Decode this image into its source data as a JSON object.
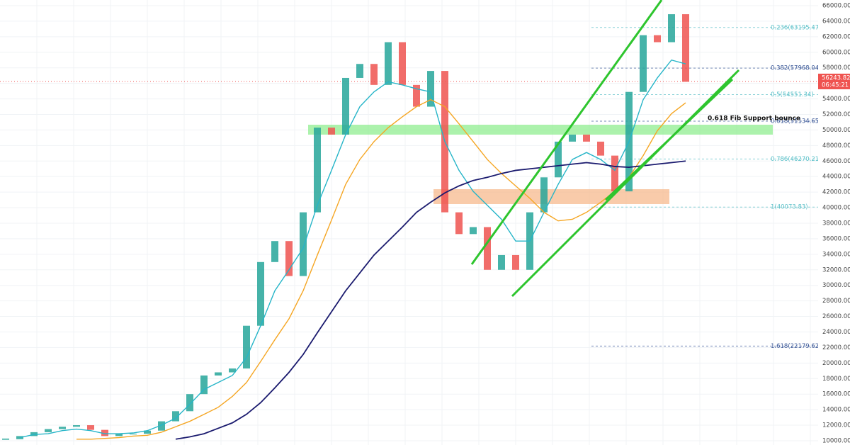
{
  "chart_data": {
    "type": "candlestick",
    "close": [
      10200,
      10600,
      11100,
      11500,
      11800,
      12000,
      11400,
      10600,
      10900,
      10900,
      11300,
      12500,
      13800,
      16000,
      18400,
      18800,
      19300,
      24800,
      33000,
      35700,
      31200,
      39400,
      50300,
      49400,
      56700,
      58500,
      55800,
      61300,
      55800,
      53000,
      57600,
      39400,
      36600,
      37500,
      32000,
      33900,
      32000,
      39400,
      43900,
      48500,
      49400,
      48500,
      46700,
      42100,
      54900,
      62200,
      61300,
      64900,
      56200
    ],
    "up_color": "#26a69a",
    "down_color": "#ef5350",
    "moving_averages": [
      {
        "color": "#26b5c8",
        "values": [
          null,
          10400,
          10800,
          10900,
          11300,
          11500,
          11300,
          10900,
          10900,
          11000,
          11300,
          12000,
          12900,
          14700,
          16600,
          17500,
          18400,
          20700,
          24800,
          29300,
          32000,
          34800,
          40300,
          44800,
          49400,
          53000,
          54900,
          56200,
          55800,
          55300,
          54900,
          48500,
          44800,
          42100,
          40300,
          38500,
          35700,
          35700,
          39400,
          43000,
          46200,
          47100,
          46200,
          44800,
          48500,
          53900,
          56700,
          59000,
          58500
        ]
      },
      {
        "color": "#f5a623",
        "values": [
          null,
          null,
          null,
          null,
          null,
          10200,
          10200,
          10300,
          10400,
          10600,
          10700,
          11100,
          11800,
          12500,
          13400,
          14300,
          15700,
          17500,
          20200,
          23000,
          25700,
          29300,
          33900,
          38400,
          43000,
          46200,
          48500,
          50300,
          51700,
          53000,
          53900,
          53000,
          50800,
          48500,
          46200,
          44400,
          42800,
          41200,
          39400,
          38300,
          38500,
          39400,
          40700,
          42100,
          43900,
          46700,
          49900,
          52100,
          53500
        ]
      },
      {
        "color": "#1a1a6e",
        "values": [
          null,
          null,
          null,
          null,
          null,
          null,
          null,
          null,
          null,
          null,
          null,
          null,
          10200,
          10500,
          10900,
          11600,
          12300,
          13400,
          14900,
          16800,
          18800,
          21100,
          23900,
          26600,
          29300,
          31600,
          33900,
          35700,
          37500,
          39400,
          40700,
          41900,
          42800,
          43500,
          43900,
          44400,
          44800,
          45000,
          45200,
          45400,
          45600,
          45800,
          45600,
          45300,
          45200,
          45400,
          45600,
          45800,
          46000
        ]
      }
    ],
    "ylim": [
      9450,
      66730
    ],
    "yticks": [
      {
        "value": 10000,
        "label": "10000.00"
      },
      {
        "value": 12000,
        "label": "12000.00"
      },
      {
        "value": 14000,
        "label": "14000.00"
      },
      {
        "value": 16000,
        "label": "16000.00"
      },
      {
        "value": 18000,
        "label": "18000.00"
      },
      {
        "value": 20000,
        "label": "20000.00"
      },
      {
        "value": 22000,
        "label": "22000.00"
      },
      {
        "value": 24000,
        "label": "24000.00"
      },
      {
        "value": 26000,
        "label": "26000.00"
      },
      {
        "value": 28000,
        "label": "28000.00"
      },
      {
        "value": 30000,
        "label": "30000.00"
      },
      {
        "value": 32000,
        "label": "32000.00"
      },
      {
        "value": 34000,
        "label": "34000.00"
      },
      {
        "value": 36000,
        "label": "36000.00"
      },
      {
        "value": 38000,
        "label": "38000.00"
      },
      {
        "value": 40000,
        "label": "40000.00"
      },
      {
        "value": 42000,
        "label": "42000.00"
      },
      {
        "value": 44000,
        "label": "44000.00"
      },
      {
        "value": 46000,
        "label": "46000.00"
      },
      {
        "value": 48000,
        "label": "48000.00"
      },
      {
        "value": 50000,
        "label": "50000.00"
      },
      {
        "value": 52000,
        "label": "52000.00"
      },
      {
        "value": 54000,
        "label": "54000.00"
      },
      {
        "value": 56000,
        "label": "56000.00"
      },
      {
        "value": 58000,
        "label": "58000.00"
      },
      {
        "value": 60000,
        "label": "60000.00"
      },
      {
        "value": 62000,
        "label": "62000.00"
      },
      {
        "value": 64000,
        "label": "64000.00"
      },
      {
        "value": 66000,
        "label": "66000.00"
      }
    ],
    "grid": true,
    "fib_levels": [
      {
        "value": 63195.47,
        "label": "0.236(63195.47)",
        "color": "#5bc0c8"
      },
      {
        "value": 57968.04,
        "label": "0.382(57968.04)",
        "color": "#3d5a99"
      },
      {
        "value": 54551.34,
        "label": "0.5(54551.34)",
        "color": "#5bc0c8"
      },
      {
        "value": 51134.65,
        "label": "0.618(51134.65)",
        "color": "#3d5a99"
      },
      {
        "value": 46270.21,
        "label": "0.786(46270.21)",
        "color": "#5bc0c8"
      },
      {
        "value": 40073.83,
        "label": "1(40073.83)",
        "color": "#5bc0c8"
      },
      {
        "value": 22179.62,
        "label": "1.618(22179.62)",
        "color": "#3d5a99"
      }
    ],
    "annotation": "0.618 Fib Support bounce",
    "last_price": {
      "value": 56243.82,
      "label": "56243.82"
    },
    "countdown": "06:45:21"
  }
}
